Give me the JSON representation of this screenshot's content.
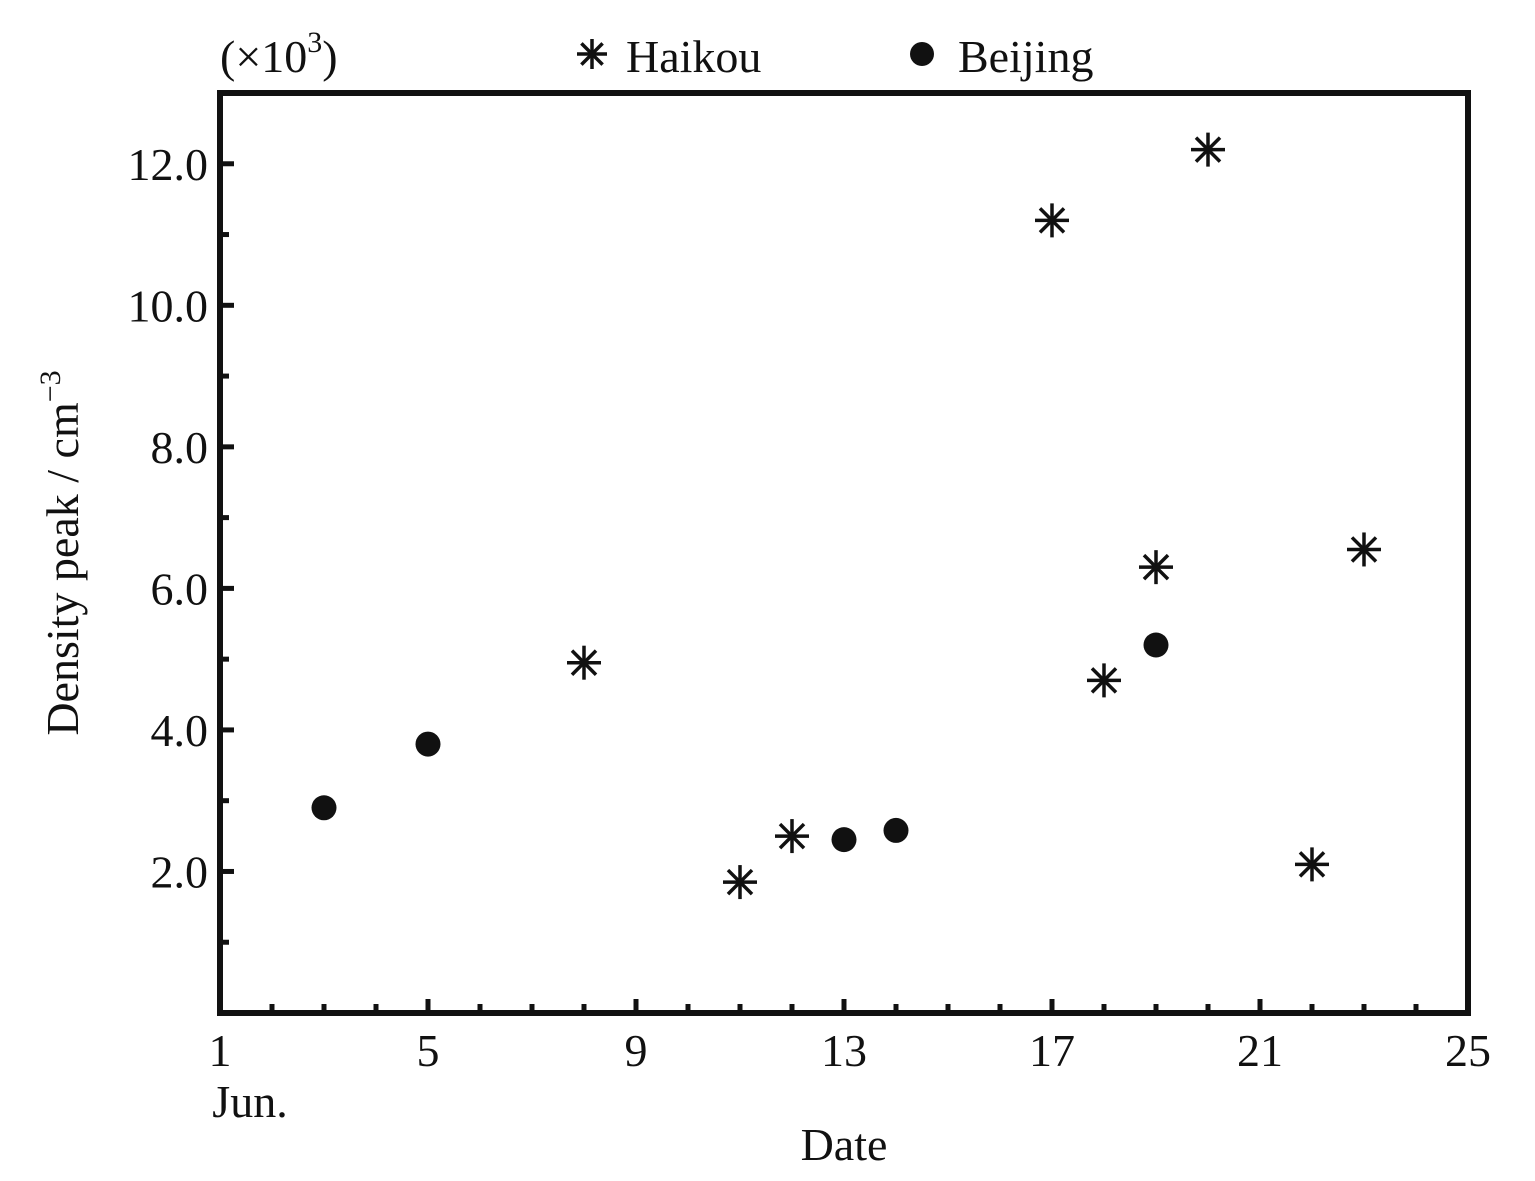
{
  "chart_data": {
    "type": "scatter",
    "multiplier_label": "(×10",
    "multiplier_exp": "3",
    "multiplier_close": ")",
    "xlabel": "Date",
    "ylabel_main": "Density peak / cm",
    "ylabel_exp": "−3",
    "xlim": [
      1,
      25
    ],
    "ylim": [
      0,
      13
    ],
    "x_ticks": [
      1,
      5,
      9,
      13,
      17,
      21,
      25
    ],
    "x_tick_labels": [
      "1",
      "5",
      "9",
      "13",
      "17",
      "21",
      "25"
    ],
    "x_first_sublabel": "Jun.",
    "y_ticks": [
      2,
      4,
      6,
      8,
      10,
      12
    ],
    "y_tick_labels": [
      "2.0",
      "4.0",
      "6.0",
      "8.0",
      "10.0",
      "12.0"
    ],
    "grid": false,
    "legend_position": "top",
    "series": [
      {
        "name": "Haikou",
        "marker": "asterisk",
        "color": "#111111",
        "points": [
          {
            "x": 8,
            "y": 4.95
          },
          {
            "x": 11,
            "y": 1.85
          },
          {
            "x": 12,
            "y": 2.5
          },
          {
            "x": 17,
            "y": 11.2
          },
          {
            "x": 18,
            "y": 4.7
          },
          {
            "x": 19,
            "y": 6.3
          },
          {
            "x": 20,
            "y": 12.2
          },
          {
            "x": 22,
            "y": 2.1
          },
          {
            "x": 23,
            "y": 6.55
          }
        ]
      },
      {
        "name": "Beijing",
        "marker": "circle",
        "color": "#111111",
        "points": [
          {
            "x": 3,
            "y": 2.9
          },
          {
            "x": 5,
            "y": 3.8
          },
          {
            "x": 13,
            "y": 2.45
          },
          {
            "x": 14,
            "y": 2.58
          },
          {
            "x": 19,
            "y": 5.2
          }
        ]
      }
    ]
  }
}
